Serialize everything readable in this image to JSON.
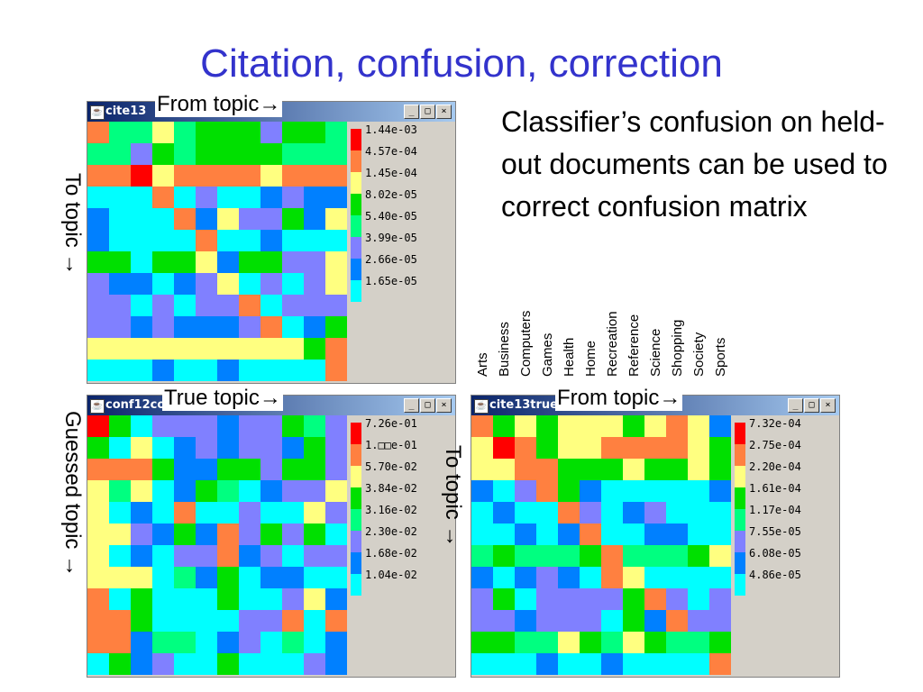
{
  "slide_title": "Citation, confusion, correction",
  "description": "Classifier’s confusion on held-out documents can be used to correct confusion matrix",
  "categories": [
    "Arts",
    "Business",
    "Computers",
    "Games",
    "Health",
    "Home",
    "Recreation",
    "Reference",
    "Science",
    "Shopping",
    "Society",
    "Sports"
  ],
  "palette": [
    "#ff0000",
    "#ff8040",
    "#ffff80",
    "#00e000",
    "#00ff80",
    "#8080ff",
    "#0080ff",
    "#00ffff"
  ],
  "window_buttons": {
    "minimize": "_",
    "maximize": "□",
    "close": "×"
  },
  "chart_data": [
    {
      "type": "heatmap",
      "window_title": "cite13",
      "x_annotation": "From topic→",
      "y_annotation": "To topic →",
      "legend": [
        "1.44e-03",
        "4.57e-04",
        "1.45e-04",
        "8.02e-05",
        "5.40e-05",
        "3.99e-05",
        "2.66e-05",
        "1.65e-05"
      ],
      "cells": [
        [
          1,
          4,
          4,
          2,
          4,
          3,
          3,
          3,
          5,
          3,
          3,
          4
        ],
        [
          4,
          4,
          5,
          3,
          4,
          3,
          3,
          3,
          3,
          4,
          4,
          4
        ],
        [
          1,
          1,
          0,
          2,
          1,
          1,
          1,
          1,
          2,
          1,
          1,
          1
        ],
        [
          7,
          7,
          7,
          1,
          7,
          5,
          7,
          7,
          6,
          5,
          6,
          6
        ],
        [
          6,
          7,
          7,
          7,
          1,
          6,
          2,
          5,
          5,
          3,
          6,
          2
        ],
        [
          6,
          7,
          7,
          7,
          7,
          1,
          7,
          7,
          6,
          7,
          7,
          7
        ],
        [
          3,
          3,
          7,
          3,
          3,
          2,
          6,
          3,
          3,
          5,
          5,
          2
        ],
        [
          5,
          6,
          6,
          7,
          6,
          5,
          2,
          7,
          5,
          7,
          5,
          2
        ],
        [
          5,
          5,
          7,
          5,
          7,
          5,
          5,
          1,
          7,
          5,
          5,
          5
        ],
        [
          5,
          5,
          6,
          5,
          6,
          6,
          6,
          5,
          1,
          7,
          6,
          3
        ],
        [
          2,
          2,
          2,
          2,
          2,
          2,
          2,
          2,
          2,
          2,
          3,
          1
        ],
        [
          7,
          7,
          7,
          6,
          7,
          7,
          6,
          7,
          7,
          7,
          7,
          1
        ]
      ]
    },
    {
      "type": "heatmap",
      "window_title": "conf12co",
      "x_annotation": "True topic→",
      "y_annotation": "Guessed topic →",
      "legend": [
        "7.26e-01",
        "1.□□e-01",
        "5.70e-02",
        "3.84e-02",
        "3.16e-02",
        "2.30e-02",
        "1.68e-02",
        "1.04e-02"
      ],
      "cells": [
        [
          0,
          3,
          7,
          5,
          5,
          5,
          6,
          5,
          5,
          3,
          4,
          5
        ],
        [
          3,
          7,
          2,
          7,
          6,
          5,
          6,
          5,
          5,
          6,
          3,
          5
        ],
        [
          1,
          1,
          1,
          3,
          6,
          6,
          3,
          3,
          5,
          3,
          3,
          5
        ],
        [
          2,
          4,
          2,
          7,
          6,
          3,
          4,
          7,
          6,
          5,
          5,
          2
        ],
        [
          2,
          7,
          6,
          7,
          1,
          7,
          7,
          5,
          7,
          7,
          2,
          5
        ],
        [
          2,
          2,
          5,
          6,
          3,
          6,
          1,
          5,
          3,
          5,
          3,
          7
        ],
        [
          2,
          7,
          6,
          7,
          5,
          5,
          1,
          6,
          5,
          7,
          5,
          5
        ],
        [
          2,
          2,
          2,
          7,
          4,
          6,
          3,
          7,
          6,
          6,
          7,
          7
        ],
        [
          1,
          7,
          3,
          7,
          7,
          7,
          3,
          7,
          7,
          5,
          2,
          6
        ],
        [
          1,
          1,
          3,
          7,
          7,
          7,
          7,
          5,
          5,
          1,
          7,
          1
        ],
        [
          1,
          1,
          6,
          4,
          4,
          7,
          6,
          5,
          7,
          4,
          7,
          6
        ],
        [
          7,
          3,
          6,
          5,
          7,
          7,
          3,
          7,
          7,
          7,
          5,
          6
        ]
      ]
    },
    {
      "type": "heatmap",
      "window_title": "cite13true",
      "x_annotation": "From topic→",
      "y_annotation": "To topic →",
      "legend": [
        "7.32e-04",
        "2.75e-04",
        "2.20e-04",
        "1.61e-04",
        "1.17e-04",
        "7.55e-05",
        "6.08e-05",
        "4.86e-05"
      ],
      "cells": [
        [
          1,
          3,
          2,
          3,
          2,
          2,
          2,
          3,
          2,
          1,
          2,
          6
        ],
        [
          2,
          0,
          1,
          3,
          2,
          2,
          1,
          1,
          1,
          1,
          2,
          3
        ],
        [
          2,
          2,
          1,
          1,
          3,
          3,
          3,
          2,
          3,
          3,
          2,
          3
        ],
        [
          6,
          7,
          5,
          1,
          3,
          6,
          7,
          7,
          7,
          7,
          7,
          6
        ],
        [
          7,
          6,
          7,
          7,
          1,
          5,
          7,
          6,
          5,
          7,
          7,
          7
        ],
        [
          7,
          7,
          6,
          7,
          6,
          1,
          7,
          7,
          6,
          6,
          7,
          7
        ],
        [
          4,
          3,
          4,
          4,
          4,
          3,
          1,
          4,
          4,
          4,
          3,
          2
        ],
        [
          6,
          7,
          6,
          5,
          6,
          7,
          1,
          2,
          7,
          7,
          7,
          7
        ],
        [
          5,
          3,
          7,
          5,
          5,
          5,
          5,
          3,
          1,
          5,
          7,
          5
        ],
        [
          5,
          5,
          6,
          5,
          5,
          5,
          7,
          3,
          6,
          1,
          5,
          5
        ],
        [
          3,
          3,
          4,
          4,
          2,
          3,
          4,
          2,
          3,
          4,
          4,
          3
        ],
        [
          7,
          7,
          7,
          6,
          7,
          7,
          6,
          7,
          7,
          7,
          7,
          1
        ]
      ]
    }
  ]
}
